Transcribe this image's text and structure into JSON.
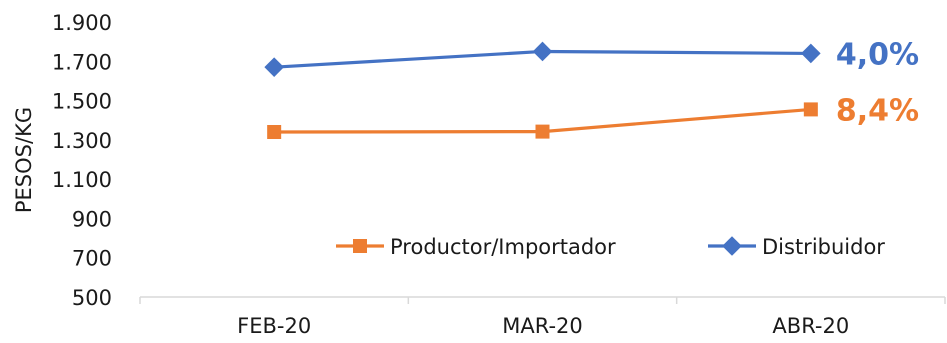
{
  "chart_data": {
    "type": "line",
    "ylabel": "PESOS/KG",
    "xlabel": "",
    "title": "",
    "categories": [
      "FEB-20",
      "MAR-20",
      "ABR-20"
    ],
    "ylim": [
      500,
      1900
    ],
    "y_ticks": [
      "1.900",
      "1.700",
      "1.500",
      "1.300",
      "1.100",
      "900",
      "700",
      "500"
    ],
    "y_tick_values": [
      1900,
      1700,
      1500,
      1300,
      1100,
      900,
      700,
      500
    ],
    "grid": false,
    "legend_position": "bottom-right",
    "series": [
      {
        "name": "Distribuidor",
        "values": [
          1670,
          1750,
          1740
        ],
        "color": "#4472C4",
        "marker": "diamond",
        "end_label": "4,0%"
      },
      {
        "name": "Productor/Importador",
        "values": [
          1340,
          1342,
          1455
        ],
        "color": "#ED7D31",
        "marker": "square",
        "end_label": "8,4%"
      }
    ],
    "legend_order": [
      "Productor/Importador",
      "Distribuidor"
    ]
  }
}
